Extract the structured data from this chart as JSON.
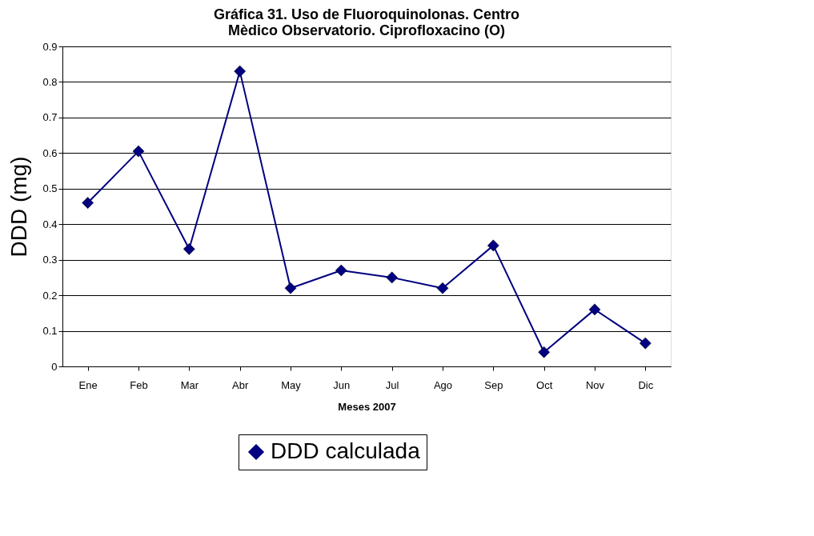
{
  "chart_data": {
    "type": "line",
    "title": "Gráfica 31.  Uso de Fluoroquinolonas. Centro\nMèdico Observatorio. Ciprofloxacino (O)",
    "xlabel": "Meses 2007",
    "ylabel": "DDD (mg)",
    "categories": [
      "Ene",
      "Feb",
      "Mar",
      "Abr",
      "May",
      "Jun",
      "Jul",
      "Ago",
      "Sep",
      "Oct",
      "Nov",
      "Dic"
    ],
    "series": [
      {
        "name": "DDD calculada",
        "color": "#000080",
        "values": [
          0.46,
          0.605,
          0.33,
          0.83,
          0.22,
          0.27,
          0.25,
          0.22,
          0.34,
          0.04,
          0.16,
          0.065
        ]
      }
    ],
    "ylim": [
      0,
      0.9
    ],
    "yticks": [
      0,
      0.1,
      0.2,
      0.3,
      0.4,
      0.5,
      0.6,
      0.7,
      0.8,
      0.9
    ],
    "grid": "y",
    "legend": "bottom",
    "marker": "diamond",
    "line_style": "solid"
  }
}
